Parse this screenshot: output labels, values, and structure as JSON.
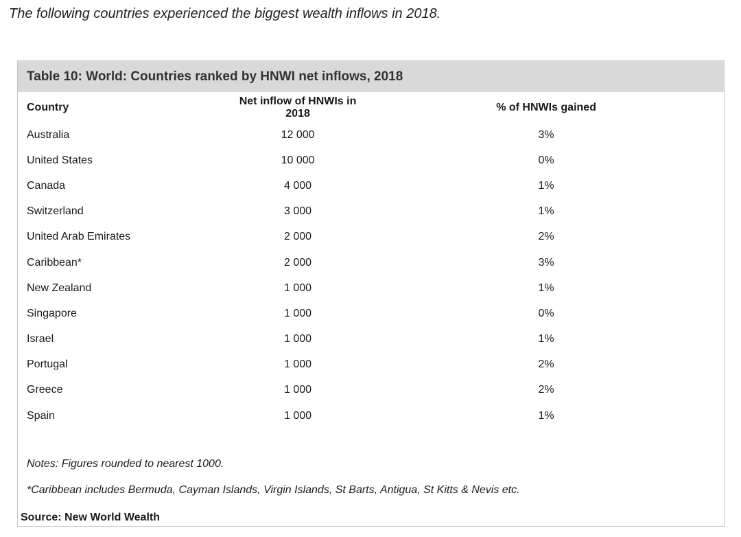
{
  "intro": "The following countries experienced the biggest wealth inflows in 2018.",
  "table": {
    "title": "Table 10: World: Countries ranked by HNWI net inflows, 2018",
    "columns": [
      "Country",
      "Net inflow of HNWIs in 2018",
      "% of HNWIs gained"
    ],
    "rows": [
      [
        "Australia",
        "12 000",
        "3%"
      ],
      [
        "United States",
        "10 000",
        "0%"
      ],
      [
        "Canada",
        "4 000",
        "1%"
      ],
      [
        "Switzerland",
        "3 000",
        "1%"
      ],
      [
        "United Arab Emirates",
        "2 000",
        "2%"
      ],
      [
        "Caribbean*",
        "2 000",
        "3%"
      ],
      [
        "New Zealand",
        "1 000",
        "1%"
      ],
      [
        "Singapore",
        "1 000",
        "0%"
      ],
      [
        "Israel",
        "1 000",
        "1%"
      ],
      [
        "Portugal",
        "1 000",
        "2%"
      ],
      [
        "Greece",
        "1 000",
        "2%"
      ],
      [
        "Spain",
        "1 000",
        "1%"
      ]
    ],
    "notes": "Notes: Figures rounded to nearest 1000.",
    "footnote": "*Caribbean includes Bermuda, Cayman Islands, Virgin Islands, St Barts, Antigua, St Kitts & Nevis etc.",
    "source": "Source: New World Wealth"
  }
}
